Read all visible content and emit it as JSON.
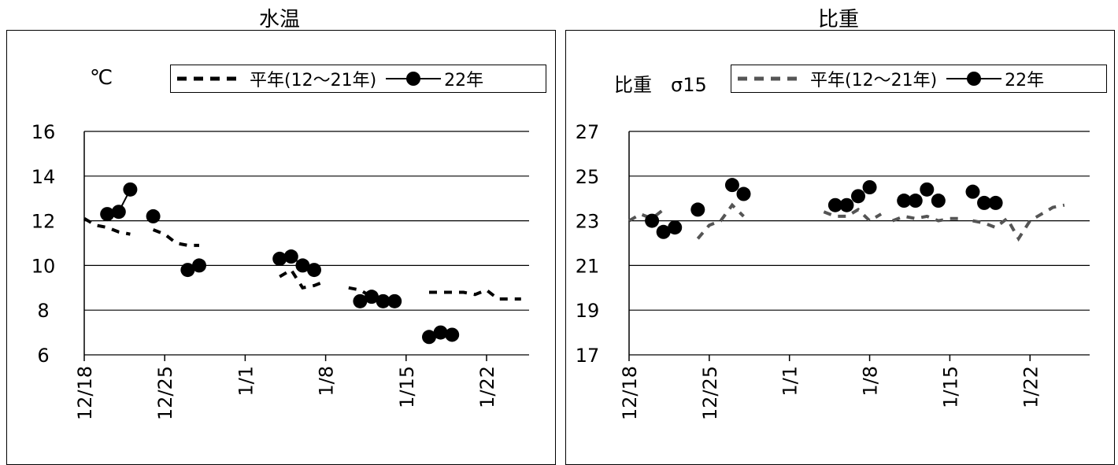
{
  "chart_data": [
    {
      "type": "line",
      "title": "水温",
      "ylabel": "℃",
      "ylim": [
        6,
        16
      ],
      "yticks": [
        "6",
        "8",
        "10",
        "12",
        "14",
        "16"
      ],
      "x_tick_labels": [
        "12/18",
        "12/25",
        "1/1",
        "1/8",
        "1/15",
        "1/22"
      ],
      "grid": true,
      "legend_position": "top-right",
      "series": [
        {
          "name": "平年(12～21年)",
          "style": "dashed",
          "segments": [
            [
              [
                "12/18",
                12.1
              ],
              [
                "12/19",
                11.8
              ],
              [
                "12/20",
                11.7
              ],
              [
                "12/21",
                11.5
              ],
              [
                "12/22",
                11.4
              ]
            ],
            [
              [
                "12/24",
                11.6
              ],
              [
                "12/25",
                11.4
              ],
              [
                "12/26",
                11.0
              ],
              [
                "12/27",
                10.9
              ],
              [
                "12/28",
                10.9
              ]
            ],
            [
              [
                "1/4",
                9.5
              ],
              [
                "1/5",
                9.8
              ],
              [
                "1/6",
                9.0
              ],
              [
                "1/7",
                9.1
              ],
              [
                "1/8",
                9.3
              ]
            ],
            [
              [
                "1/10",
                9.0
              ],
              [
                "1/11",
                8.9
              ],
              [
                "1/12",
                8.6
              ],
              [
                "1/13",
                8.5
              ],
              [
                "1/14",
                8.5
              ],
              [
                "1/15",
                8.5
              ]
            ],
            [
              [
                "1/17",
                8.8
              ],
              [
                "1/18",
                8.8
              ],
              [
                "1/19",
                8.8
              ],
              [
                "1/20",
                8.8
              ],
              [
                "1/21",
                8.7
              ],
              [
                "1/22",
                8.9
              ],
              [
                "1/23",
                8.5
              ],
              [
                "1/24",
                8.5
              ],
              [
                "1/25",
                8.5
              ]
            ]
          ]
        },
        {
          "name": "22年",
          "style": "solid-marker",
          "segments": [
            [
              [
                "12/20",
                12.3
              ],
              [
                "12/21",
                12.4
              ],
              [
                "12/22",
                13.4
              ]
            ],
            [
              [
                "12/24",
                12.2
              ]
            ],
            [
              [
                "12/27",
                9.8
              ],
              [
                "12/28",
                10.0
              ]
            ],
            [
              [
                "1/4",
                10.3
              ],
              [
                "1/5",
                10.4
              ],
              [
                "1/6",
                10.0
              ],
              [
                "1/7",
                9.8
              ]
            ],
            [
              [
                "1/11",
                8.4
              ],
              [
                "1/12",
                8.6
              ],
              [
                "1/13",
                8.4
              ],
              [
                "1/14",
                8.4
              ]
            ],
            [
              [
                "1/17",
                6.8
              ],
              [
                "1/18",
                7.0
              ],
              [
                "1/19",
                6.9
              ]
            ]
          ]
        }
      ]
    },
    {
      "type": "line",
      "title": "比重",
      "ylabel": "比重　σ15",
      "ylim": [
        17,
        27
      ],
      "yticks": [
        "17",
        "19",
        "21",
        "23",
        "25",
        "27"
      ],
      "x_tick_labels": [
        "12/18",
        "12/25",
        "1/1",
        "1/8",
        "1/15",
        "1/22"
      ],
      "grid": true,
      "legend_position": "top-right",
      "series": [
        {
          "name": "平年(12～21年)",
          "style": "dashed",
          "segments": [
            [
              [
                "12/18",
                23.0
              ],
              [
                "12/19",
                23.3
              ],
              [
                "12/20",
                23.1
              ],
              [
                "12/21",
                23.5
              ]
            ],
            [
              [
                "12/24",
                22.2
              ],
              [
                "12/25",
                22.8
              ],
              [
                "12/26",
                23.0
              ],
              [
                "12/27",
                23.7
              ],
              [
                "12/28",
                23.2
              ]
            ],
            [
              [
                "1/4",
                23.4
              ],
              [
                "1/5",
                23.2
              ],
              [
                "1/6",
                23.2
              ],
              [
                "1/7",
                23.5
              ],
              [
                "1/8",
                23.0
              ],
              [
                "1/9",
                23.3
              ]
            ],
            [
              [
                "1/10",
                23.0
              ],
              [
                "1/11",
                23.2
              ],
              [
                "1/12",
                23.1
              ],
              [
                "1/13",
                23.2
              ],
              [
                "1/14",
                23.0
              ],
              [
                "1/15",
                23.1
              ],
              [
                "1/16",
                23.1
              ]
            ],
            [
              [
                "1/17",
                23.0
              ],
              [
                "1/18",
                22.9
              ],
              [
                "1/19",
                22.7
              ],
              [
                "1/20",
                23.1
              ],
              [
                "1/21",
                22.2
              ],
              [
                "1/22",
                23.0
              ],
              [
                "1/23",
                23.3
              ],
              [
                "1/24",
                23.6
              ],
              [
                "1/25",
                23.7
              ]
            ]
          ]
        },
        {
          "name": "22年",
          "style": "solid-marker",
          "segments": [
            [
              [
                "12/20",
                23.0
              ]
            ],
            [
              [
                "12/21",
                22.5
              ]
            ],
            [
              [
                "12/22",
                22.7
              ]
            ],
            [
              [
                "12/24",
                23.5
              ]
            ],
            [
              [
                "12/27",
                24.6
              ]
            ],
            [
              [
                "12/28",
                24.2
              ]
            ],
            [
              [
                "1/5",
                23.7
              ]
            ],
            [
              [
                "1/6",
                23.7
              ]
            ],
            [
              [
                "1/7",
                24.1
              ]
            ],
            [
              [
                "1/8",
                24.5
              ]
            ],
            [
              [
                "1/11",
                23.9
              ]
            ],
            [
              [
                "1/12",
                23.9
              ]
            ],
            [
              [
                "1/13",
                24.4
              ]
            ],
            [
              [
                "1/14",
                23.9
              ]
            ],
            [
              [
                "1/17",
                24.3
              ]
            ],
            [
              [
                "1/18",
                23.8
              ]
            ],
            [
              [
                "1/19",
                23.8
              ]
            ]
          ]
        }
      ]
    }
  ],
  "colors": {
    "dashed_left": "#000000",
    "dashed_right": "#555555",
    "marker": "#000000",
    "grid": "#000000"
  }
}
